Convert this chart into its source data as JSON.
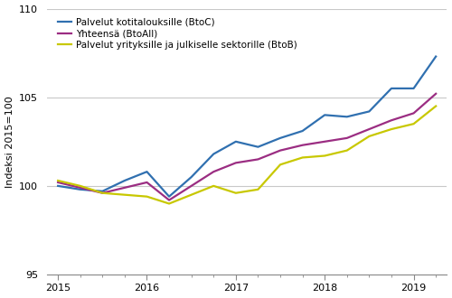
{
  "ylabel": "Indeksi 2015=100",
  "ylim": [
    95,
    110
  ],
  "yticks": [
    95,
    100,
    105,
    110
  ],
  "colors": {
    "btoc": "#3070b0",
    "btoall": "#9b2d82",
    "btob": "#c8c800"
  },
  "legend_labels": [
    "Palvelut kotitalouksille (BtoC)",
    "Yhteensä (BtoAll)",
    "Palvelut yrityksille ja julkiselle sektorille (BtoB)"
  ],
  "x_year_labels": [
    "2015",
    "2016",
    "2017",
    "2018",
    "2019"
  ],
  "btoc": [
    100.0,
    99.8,
    99.7,
    100.3,
    100.8,
    99.4,
    100.5,
    101.8,
    102.5,
    102.2,
    102.7,
    103.1,
    104.0,
    103.9,
    104.2,
    105.5,
    105.5,
    107.3
  ],
  "btoall": [
    100.2,
    99.9,
    99.6,
    99.9,
    100.2,
    99.2,
    100.0,
    100.8,
    101.3,
    101.5,
    102.0,
    102.3,
    102.5,
    102.7,
    103.2,
    103.7,
    104.1,
    105.2
  ],
  "btob": [
    100.3,
    100.0,
    99.6,
    99.5,
    99.4,
    99.0,
    99.5,
    100.0,
    99.6,
    99.8,
    101.2,
    101.6,
    101.7,
    102.0,
    102.8,
    103.2,
    103.5,
    104.5
  ],
  "background_color": "#ffffff",
  "grid_color": "#c8c8c8",
  "linewidth": 1.6
}
